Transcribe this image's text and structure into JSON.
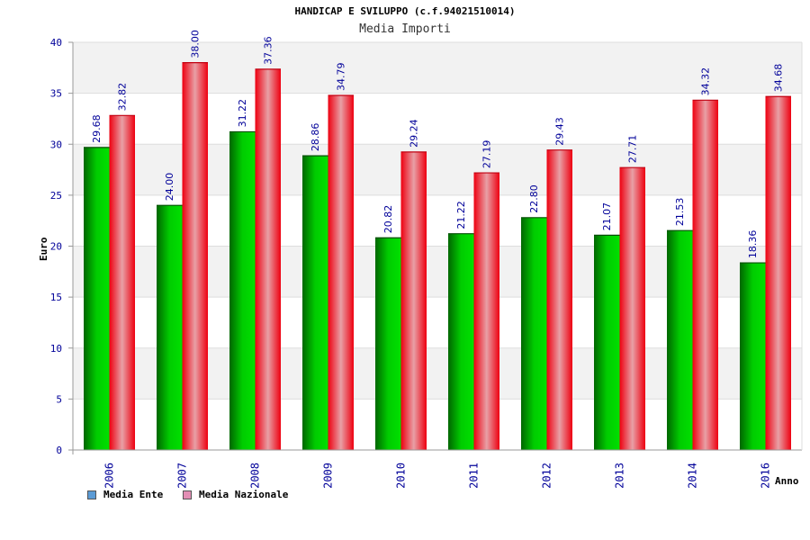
{
  "chart_data": {
    "type": "bar",
    "title": "HANDICAP E SVILUPPO (c.f.94021510014)",
    "subtitle": "Media Importi",
    "xlabel": "Anno",
    "ylabel": "Euro",
    "ylim": [
      0,
      40
    ],
    "yticks": [
      0,
      5,
      10,
      15,
      20,
      25,
      30,
      35,
      40
    ],
    "grid": true,
    "legend_position": "bottom-left",
    "categories": [
      "2006",
      "2007",
      "2008",
      "2009",
      "2010",
      "2011",
      "2012",
      "2013",
      "2014",
      "2016"
    ],
    "series": [
      {
        "name": "Media Ente",
        "color": "#00aa00",
        "values": [
          29.68,
          24.0,
          31.22,
          28.86,
          20.82,
          21.22,
          22.8,
          21.07,
          21.53,
          18.36
        ],
        "labels": [
          "29.68",
          "24.00",
          "31.22",
          "28.86",
          "20.82",
          "21.22",
          "22.80",
          "21.07",
          "21.53",
          "18.36"
        ]
      },
      {
        "name": "Media Nazionale",
        "color": "#ee1c24",
        "values": [
          32.82,
          38.0,
          37.36,
          34.79,
          29.24,
          27.19,
          29.43,
          27.71,
          34.32,
          34.68
        ],
        "labels": [
          "32.82",
          "38.00",
          "37.36",
          "34.79",
          "29.24",
          "27.19",
          "29.43",
          "27.71",
          "34.32",
          "34.68"
        ]
      }
    ],
    "legend_swatch_colors": [
      "#5b9bd5",
      "#e38fb5"
    ],
    "axis_text_color": "#000099"
  }
}
